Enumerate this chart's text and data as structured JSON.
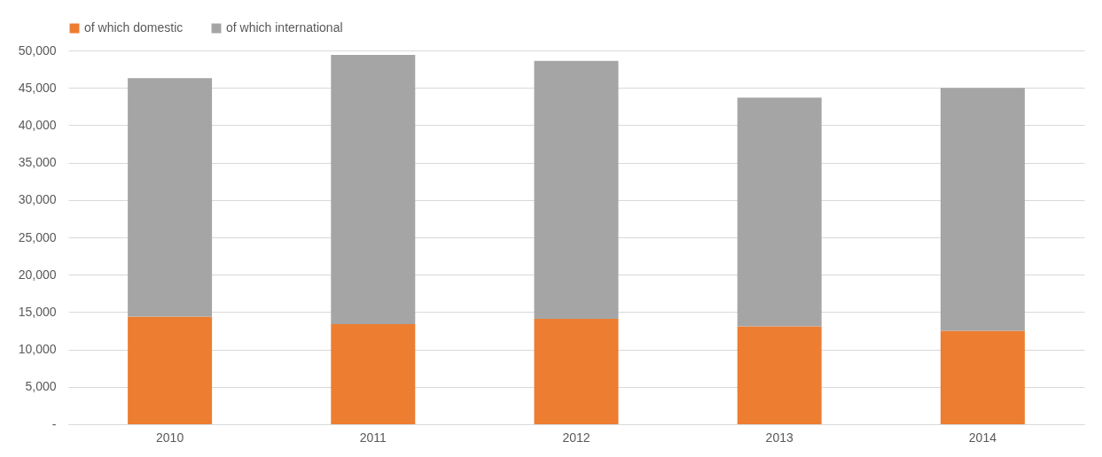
{
  "chart_data": {
    "type": "bar",
    "stacked": true,
    "categories": [
      "2010",
      "2011",
      "2012",
      "2013",
      "2014"
    ],
    "series": [
      {
        "name": "of which domestic",
        "color": "#ed7d31",
        "values": [
          14400,
          13400,
          14100,
          13100,
          12500
        ]
      },
      {
        "name": "of which international",
        "color": "#a5a5a5",
        "values": [
          31900,
          36000,
          34500,
          30600,
          32500
        ]
      }
    ],
    "ylim": [
      0,
      50000
    ],
    "yticks": [
      {
        "value": 0,
        "label": "-"
      },
      {
        "value": 5000,
        "label": "5,000"
      },
      {
        "value": 10000,
        "label": "10,000"
      },
      {
        "value": 15000,
        "label": "15,000"
      },
      {
        "value": 20000,
        "label": "20,000"
      },
      {
        "value": 25000,
        "label": "25,000"
      },
      {
        "value": 30000,
        "label": "30,000"
      },
      {
        "value": 35000,
        "label": "35,000"
      },
      {
        "value": 40000,
        "label": "40,000"
      },
      {
        "value": 45000,
        "label": "45,000"
      },
      {
        "value": 50000,
        "label": "50,000"
      }
    ],
    "grid": "y",
    "legend": "top"
  }
}
